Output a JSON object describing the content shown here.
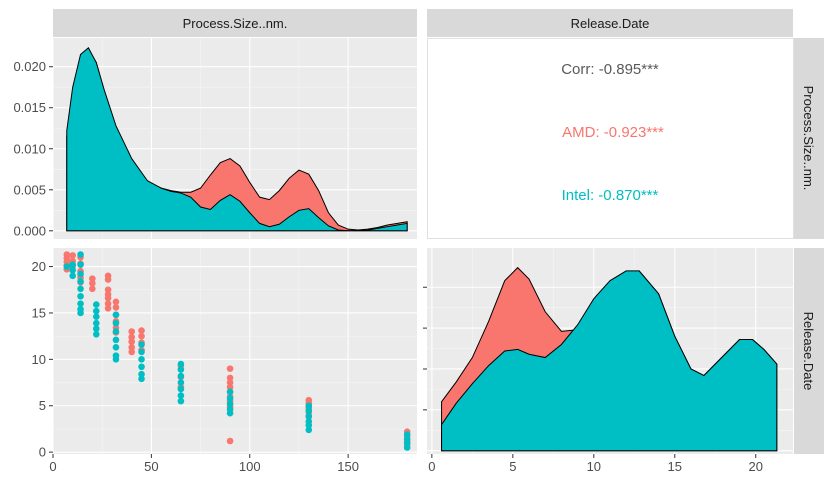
{
  "chart_data": [
    {
      "type": "area",
      "panel": "Process.Size..nm. density",
      "xlim": [
        0,
        185
      ],
      "ylim": [
        -0.001,
        0.0235
      ],
      "x_ticks": [
        "0",
        "50",
        "100",
        "150"
      ],
      "y_ticks": [
        "0.000",
        "0.005",
        "0.010",
        "0.015",
        "0.020"
      ],
      "x_tick_values": [
        0,
        50,
        100,
        150
      ],
      "y_tick_values": [
        0,
        0.005,
        0.01,
        0.015,
        0.02
      ],
      "grid": true,
      "series": [
        {
          "name": "AMD",
          "color": "#F8766D",
          "x": [
            7,
            10,
            14,
            18,
            22,
            26,
            32,
            40,
            48,
            55,
            60,
            65,
            70,
            75,
            80,
            85,
            90,
            95,
            100,
            105,
            110,
            115,
            120,
            125,
            130,
            135,
            140,
            145,
            150,
            155,
            160,
            165,
            170,
            175,
            180
          ],
          "y": [
            0.0115,
            0.0165,
            0.0205,
            0.022,
            0.0205,
            0.017,
            0.0125,
            0.0085,
            0.006,
            0.0052,
            0.0049,
            0.0047,
            0.0047,
            0.0052,
            0.0068,
            0.0083,
            0.0088,
            0.0079,
            0.0059,
            0.0041,
            0.0038,
            0.0049,
            0.0064,
            0.0074,
            0.0069,
            0.0049,
            0.0022,
            0.0007,
            0.0002,
            0.0001,
            0.0002,
            0.0004,
            0.0007,
            0.0009,
            0.0011
          ]
        },
        {
          "name": "Intel",
          "color": "#00BFC4",
          "x": [
            7,
            10,
            14,
            18,
            22,
            26,
            32,
            40,
            48,
            55,
            60,
            65,
            70,
            75,
            80,
            85,
            90,
            95,
            100,
            105,
            110,
            115,
            120,
            125,
            130,
            135,
            140,
            145,
            150,
            155,
            160,
            165,
            170,
            175,
            180
          ],
          "y": [
            0.0122,
            0.0175,
            0.0215,
            0.0223,
            0.0205,
            0.0172,
            0.0128,
            0.0088,
            0.0061,
            0.0052,
            0.0048,
            0.0046,
            0.0041,
            0.0029,
            0.0026,
            0.0037,
            0.0044,
            0.0036,
            0.0022,
            0.0009,
            0.0005,
            0.0008,
            0.0017,
            0.0025,
            0.0027,
            0.0016,
            0.0006,
            0.0001,
            0.0,
            0.0,
            0.0001,
            0.0003,
            0.0005,
            0.0007,
            0.0009
          ]
        }
      ]
    },
    {
      "type": "text",
      "panel": "correlation",
      "entries": [
        {
          "text": "Corr: -0.895***",
          "color": "#595959"
        },
        {
          "text": "AMD: -0.923***",
          "color": "#F8766D"
        },
        {
          "text": "Intel: -0.870***",
          "color": "#00BFC4"
        }
      ]
    },
    {
      "type": "scatter",
      "panel": "Release.Date vs Process.Size..nm.",
      "xlim": [
        0,
        185
      ],
      "ylim": [
        -0.2,
        22
      ],
      "x_ticks": [
        "0",
        "50",
        "100",
        "150"
      ],
      "y_ticks": [
        "0",
        "5",
        "10",
        "15",
        "20"
      ],
      "x_tick_values": [
        0,
        50,
        100,
        150
      ],
      "y_tick_values": [
        0,
        5,
        10,
        15,
        20
      ],
      "grid": true,
      "series": [
        {
          "name": "AMD",
          "color": "#F8766D",
          "points": [
            [
              7,
              21.3
            ],
            [
              7,
              20.9
            ],
            [
              7,
              20.5
            ],
            [
              7,
              20.1
            ],
            [
              7,
              19.7
            ],
            [
              10,
              21.2
            ],
            [
              10,
              20.6
            ],
            [
              10,
              20.0
            ],
            [
              14,
              21.0
            ],
            [
              14,
              20.3
            ],
            [
              14,
              19.5
            ],
            [
              14,
              18.8
            ],
            [
              14,
              18.3
            ],
            [
              20,
              18.7
            ],
            [
              20,
              18.2
            ],
            [
              20,
              17.6
            ],
            [
              28,
              19.0
            ],
            [
              28,
              18.6
            ],
            [
              28,
              17.5
            ],
            [
              28,
              17.0
            ],
            [
              28,
              16.6
            ],
            [
              28,
              16.0
            ],
            [
              28,
              15.5
            ],
            [
              32,
              16.2
            ],
            [
              32,
              15.6
            ],
            [
              32,
              14.8
            ],
            [
              32,
              14.1
            ],
            [
              32,
              13.4
            ],
            [
              32,
              12.9
            ],
            [
              40,
              13.0
            ],
            [
              40,
              12.4
            ],
            [
              40,
              11.9
            ],
            [
              40,
              11.3
            ],
            [
              40,
              10.8
            ],
            [
              45,
              13.1
            ],
            [
              45,
              12.5
            ],
            [
              45,
              11.8
            ],
            [
              45,
              11.0
            ],
            [
              65,
              9.3
            ],
            [
              65,
              8.1
            ],
            [
              65,
              7.0
            ],
            [
              90,
              9.0
            ],
            [
              90,
              8.0
            ],
            [
              90,
              7.5
            ],
            [
              90,
              7.0
            ],
            [
              90,
              6.5
            ],
            [
              90,
              6.0
            ],
            [
              90,
              5.5
            ],
            [
              90,
              5.0
            ],
            [
              90,
              4.8
            ],
            [
              90,
              1.2
            ],
            [
              130,
              5.6
            ],
            [
              130,
              5.3
            ],
            [
              130,
              4.8
            ],
            [
              130,
              4.3
            ],
            [
              130,
              3.8
            ],
            [
              180,
              2.2
            ],
            [
              180,
              1.7
            ],
            [
              180,
              1.2
            ],
            [
              180,
              0.8
            ]
          ]
        },
        {
          "name": "Intel",
          "color": "#00BFC4",
          "points": [
            [
              7,
              20.0
            ],
            [
              10,
              20.2
            ],
            [
              10,
              19.6
            ],
            [
              10,
              19.0
            ],
            [
              14,
              21.3
            ],
            [
              14,
              20.2
            ],
            [
              14,
              19.2
            ],
            [
              14,
              18.4
            ],
            [
              14,
              17.6
            ],
            [
              14,
              16.8
            ],
            [
              14,
              16.0
            ],
            [
              14,
              15.4
            ],
            [
              14,
              15.0
            ],
            [
              22,
              15.9
            ],
            [
              22,
              15.2
            ],
            [
              22,
              14.6
            ],
            [
              22,
              13.9
            ],
            [
              22,
              13.3
            ],
            [
              22,
              12.7
            ],
            [
              32,
              14.8
            ],
            [
              32,
              13.9
            ],
            [
              32,
              13.0
            ],
            [
              32,
              12.1
            ],
            [
              32,
              11.3
            ],
            [
              32,
              10.4
            ],
            [
              32,
              10.0
            ],
            [
              45,
              11.6
            ],
            [
              45,
              10.8
            ],
            [
              45,
              10.0
            ],
            [
              45,
              9.2
            ],
            [
              45,
              8.4
            ],
            [
              45,
              7.9
            ],
            [
              65,
              9.5
            ],
            [
              65,
              8.9
            ],
            [
              65,
              8.2
            ],
            [
              65,
              7.5
            ],
            [
              65,
              6.8
            ],
            [
              65,
              6.1
            ],
            [
              65,
              5.5
            ],
            [
              90,
              6.5
            ],
            [
              90,
              5.8
            ],
            [
              90,
              5.2
            ],
            [
              90,
              4.6
            ],
            [
              90,
              4.2
            ],
            [
              130,
              5.0
            ],
            [
              130,
              4.5
            ],
            [
              130,
              3.9
            ],
            [
              130,
              3.3
            ],
            [
              130,
              2.9
            ],
            [
              130,
              2.4
            ],
            [
              180,
              1.9
            ],
            [
              180,
              1.4
            ],
            [
              180,
              1.0
            ],
            [
              180,
              0.5
            ]
          ]
        }
      ]
    },
    {
      "type": "area",
      "panel": "Release.Date density",
      "xlim": [
        -0.3,
        22.3
      ],
      "ylim": [
        -0.002,
        0.124
      ],
      "x_ticks": [
        "0",
        "5",
        "10",
        "15",
        "20"
      ],
      "x_tick_values": [
        0,
        5,
        10,
        15,
        20
      ],
      "grid": true,
      "series": [
        {
          "name": "AMD",
          "color": "#F8766D",
          "x": [
            0.6,
            1.5,
            2.5,
            3.5,
            4.5,
            5.3,
            6.0,
            7.0,
            8.0,
            9.0,
            10.0,
            11.0,
            12.0,
            12.8,
            14.0,
            15.0,
            16.0,
            16.8,
            18.0,
            19.0,
            19.8,
            20.5,
            21.3
          ],
          "y": [
            0.03,
            0.042,
            0.057,
            0.079,
            0.104,
            0.112,
            0.105,
            0.085,
            0.073,
            0.074,
            0.088,
            0.102,
            0.109,
            0.11,
            0.096,
            0.07,
            0.05,
            0.046,
            0.058,
            0.068,
            0.068,
            0.062,
            0.053
          ]
        },
        {
          "name": "Intel",
          "color": "#00BFC4",
          "x": [
            0.6,
            1.5,
            2.5,
            3.5,
            4.5,
            5.3,
            6.0,
            7.0,
            8.0,
            9.0,
            10.0,
            11.0,
            12.0,
            12.8,
            14.0,
            15.0,
            16.0,
            16.8,
            18.0,
            19.0,
            19.8,
            20.5,
            21.3
          ],
          "y": [
            0.016,
            0.029,
            0.041,
            0.052,
            0.061,
            0.062,
            0.059,
            0.057,
            0.065,
            0.077,
            0.093,
            0.104,
            0.11,
            0.11,
            0.096,
            0.07,
            0.05,
            0.046,
            0.058,
            0.068,
            0.068,
            0.062,
            0.053
          ]
        }
      ]
    }
  ],
  "strips": {
    "top": [
      "Process.Size..nm.",
      "Release.Date"
    ],
    "right": [
      "Process.Size..nm.",
      "Release.Date"
    ]
  }
}
